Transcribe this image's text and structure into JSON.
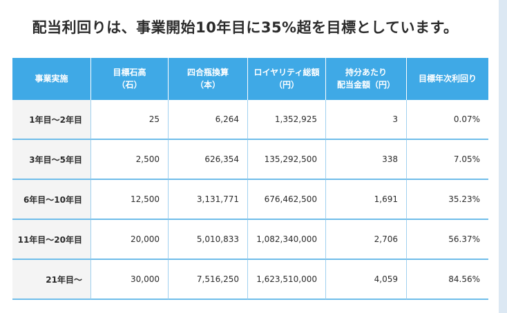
{
  "title": "配当利回りは、事業開始10年目に35%超を目標としています。",
  "table": {
    "headers": [
      {
        "line1": "事業実施",
        "line2": ""
      },
      {
        "line1": "目標石高",
        "line2": "（石）"
      },
      {
        "line1": "四合瓶換算",
        "line2": "（本）"
      },
      {
        "line1": "ロイヤリティ総額",
        "line2": "（円）"
      },
      {
        "line1": "持分あたり",
        "line2": "配当金額（円）"
      },
      {
        "line1": "目標年次利回り",
        "line2": ""
      }
    ],
    "rows": [
      {
        "period": "1年目〜2年目",
        "koku": "25",
        "bottles": "6,264",
        "royalty": "1,352,925",
        "dividend": "3",
        "yield": "0.07%"
      },
      {
        "period": "3年目〜5年目",
        "koku": "2,500",
        "bottles": "626,354",
        "royalty": "135,292,500",
        "dividend": "338",
        "yield": "7.05%"
      },
      {
        "period": "6年目〜10年目",
        "koku": "12,500",
        "bottles": "3,131,771",
        "royalty": "676,462,500",
        "dividend": "1,691",
        "yield": "35.23%"
      },
      {
        "period": "11年目〜20年目",
        "koku": "20,000",
        "bottles": "5,010,833",
        "royalty": "1,082,340,000",
        "dividend": "2,706",
        "yield": "56.37%"
      },
      {
        "period": "21年目〜",
        "koku": "30,000",
        "bottles": "7,516,250",
        "royalty": "1,623,510,000",
        "dividend": "4,059",
        "yield": "84.56%"
      }
    ]
  }
}
